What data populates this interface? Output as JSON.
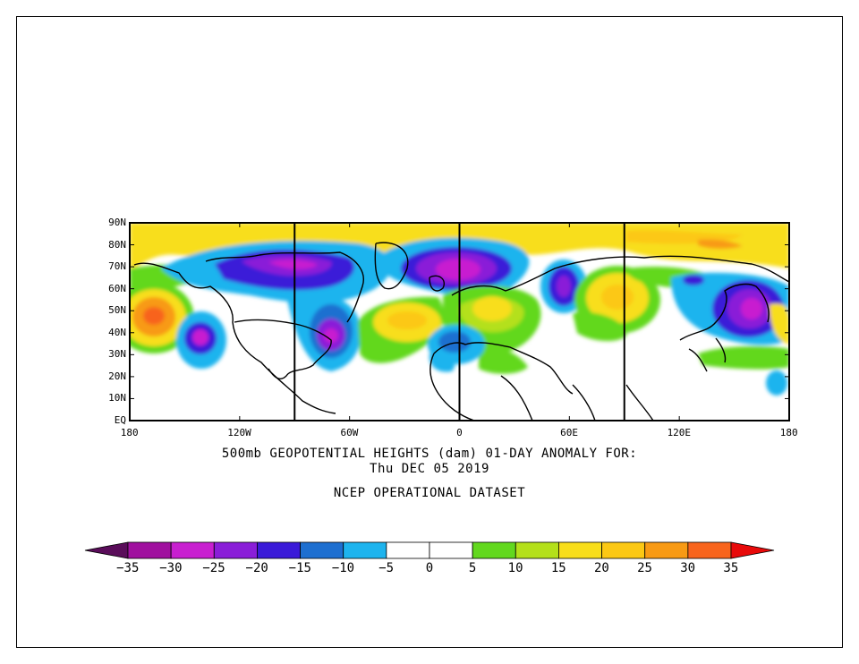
{
  "caption": {
    "line1": "500mb GEOPOTENTIAL HEIGHTS (dam)   01-DAY ANOMALY FOR:",
    "line2": "Thu DEC 05 2019",
    "line3": "NCEP OPERATIONAL DATASET"
  },
  "map": {
    "lon_range": [
      -180,
      180
    ],
    "lat_range": [
      0,
      90
    ],
    "lat_labels": [
      "90N",
      "80N",
      "70N",
      "60N",
      "50N",
      "40N",
      "30N",
      "20N",
      "10N",
      "EQ"
    ],
    "lon_labels": [
      "180",
      "120W",
      "60W",
      "0",
      "60E",
      "120E",
      "180"
    ],
    "reference_meridians": [
      -90,
      0,
      90
    ],
    "anomaly_centers": [
      {
        "lon": -135,
        "lat": 39,
        "value": -25
      },
      {
        "lon": -168,
        "lat": 48,
        "value": 30
      },
      {
        "lon": -70,
        "lat": 41,
        "value": -30
      },
      {
        "lon": -95,
        "lat": 70,
        "value": -25
      },
      {
        "lon": -5,
        "lat": 69,
        "value": -30
      },
      {
        "lon": 57,
        "lat": 61,
        "value": -20
      },
      {
        "lon": 152,
        "lat": 55,
        "value": -25
      },
      {
        "lon": 70,
        "lat": 61,
        "value": 20
      },
      {
        "lon": -40,
        "lat": 45,
        "value": 20
      },
      {
        "lon": 15,
        "lat": 50,
        "value": 15
      },
      {
        "lon": 20,
        "lat": 35,
        "value": 10
      },
      {
        "lon": -10,
        "lat": 37,
        "value": -10
      },
      {
        "lon": 130,
        "lat": 78,
        "value": 25
      },
      {
        "lon": 176,
        "lat": 18,
        "value": -10
      },
      {
        "lon": 0,
        "lat": 85,
        "value": 20
      }
    ]
  },
  "colorbar": {
    "ticks": [
      "-35",
      "-30",
      "-25",
      "-20",
      "-15",
      "-10",
      "-5",
      "0",
      "5",
      "10",
      "15",
      "20",
      "25",
      "30",
      "35"
    ],
    "colors": [
      "#5a0d5a",
      "#a0109f",
      "#c81fd0",
      "#8a1ed8",
      "#3a1ad8",
      "#1e6fd0",
      "#1eb4ee",
      "#ffffff",
      "#ffffff",
      "#62d81e",
      "#b4e01a",
      "#f8de1a",
      "#fcc814",
      "#f89a14",
      "#f8641c",
      "#e80a0a"
    ]
  }
}
